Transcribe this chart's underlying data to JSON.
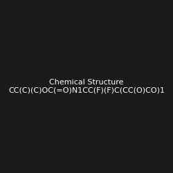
{
  "smiles": "CC(C)(C)OC(=O)N1CC(F)(F)C(CC(O)CO)1",
  "title": "",
  "bg_color": "#1a1a1a",
  "img_size": [
    250,
    250
  ],
  "atom_colors": {
    "N": "#0000FF",
    "O": "#FF0000",
    "F": "#00CC00",
    "C": "#FFFFFF"
  }
}
